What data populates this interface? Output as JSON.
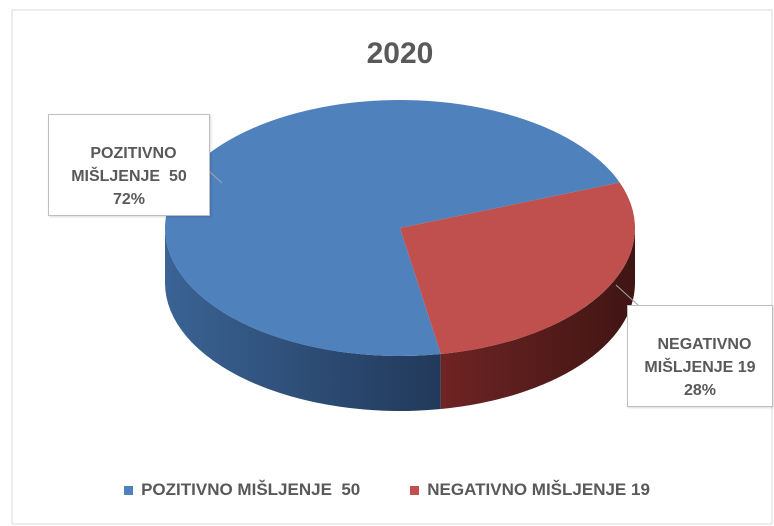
{
  "chart_data": {
    "type": "pie",
    "title": "2020",
    "categories": [
      "POZITIVNO MIŠLJENJE  50",
      "NEGATIVNO MIŠLJENJE 19"
    ],
    "values": [
      72,
      28
    ],
    "value_labels": [
      "72%",
      "28%"
    ],
    "colors": [
      "#4f81bd",
      "#c0504d"
    ],
    "legend": "bottom"
  }
}
